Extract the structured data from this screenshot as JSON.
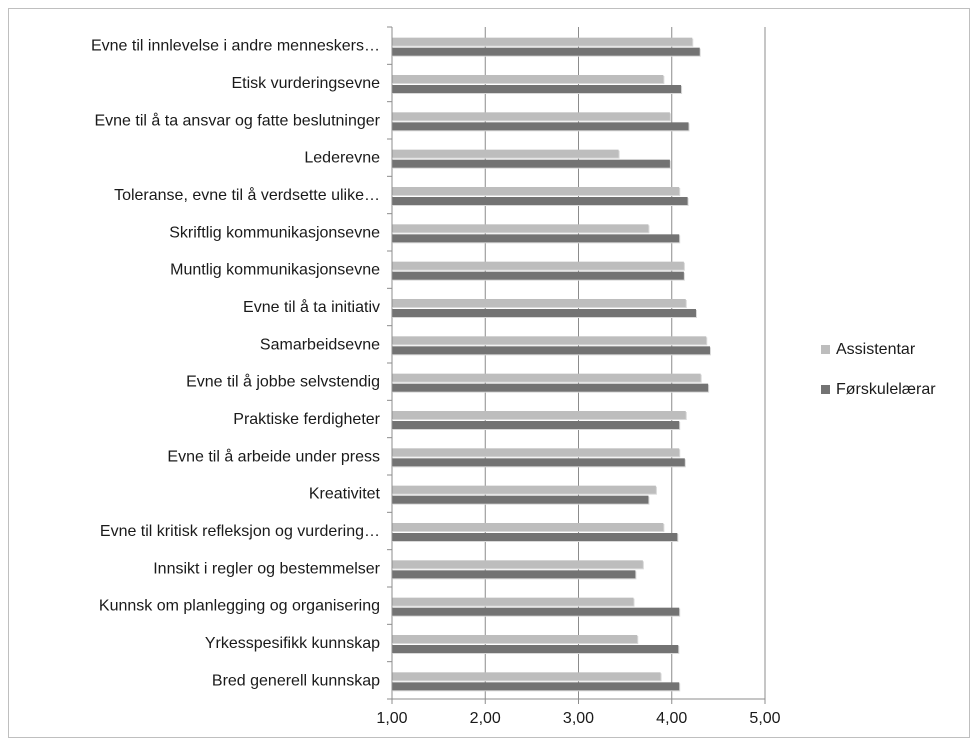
{
  "chart_data": {
    "type": "bar",
    "orientation": "horizontal",
    "categories": [
      "Evne til innlevelse i andre menneskers…",
      "Etisk vurderingsevne",
      "Evne til å ta ansvar og fatte beslutninger",
      "Lederevne",
      "Toleranse, evne til å verdsette ulike…",
      "Skriftlig kommunikasjonsevne",
      "Muntlig kommunikasjonsevne",
      "Evne til å ta initiativ",
      "Samarbeidsevne",
      "Evne til å jobbe selvstendig",
      "Praktiske ferdigheter",
      "Evne til å arbeide under press",
      "Kreativitet",
      "Evne til kritisk refleksjon og vurdering…",
      "Innsikt i regler og bestemmelser",
      "Kunnsk om planlegging og organisering",
      "Yrkesspesifikk kunnskap",
      "Bred generell kunnskap"
    ],
    "series": [
      {
        "name": "Assistentar",
        "color": "#bdbdbd",
        "values": [
          4.22,
          3.91,
          3.98,
          3.43,
          4.08,
          3.75,
          4.13,
          4.15,
          4.37,
          4.31,
          4.15,
          4.08,
          3.83,
          3.91,
          3.69,
          3.59,
          3.63,
          3.88
        ]
      },
      {
        "name": "Førskulelærar",
        "color": "#737373",
        "values": [
          4.3,
          4.1,
          4.18,
          3.98,
          4.17,
          4.08,
          4.13,
          4.26,
          4.41,
          4.39,
          4.08,
          4.14,
          3.75,
          4.06,
          3.61,
          4.08,
          4.07,
          4.08
        ]
      }
    ],
    "xlim": [
      1,
      5
    ],
    "xticks": [
      "1,00",
      "2,00",
      "3,00",
      "4,00",
      "5,00"
    ],
    "grid": true,
    "legend": "right",
    "title": "",
    "xlabel": "",
    "ylabel": ""
  }
}
